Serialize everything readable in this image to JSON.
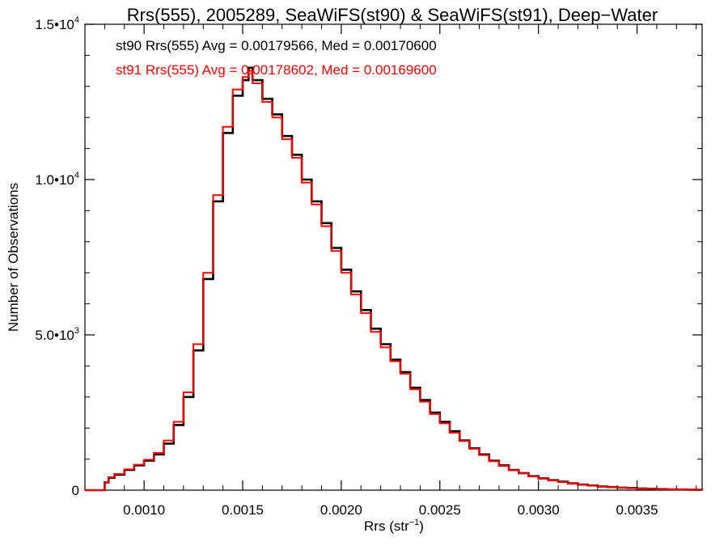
{
  "chart_data": {
    "type": "line",
    "title": "Rrs(555), 2005289, SeaWiFS(st90) & SeaWiFS(st91), Deep−Water",
    "xlabel": "Rrs (str",
    "xlabel_sup": "−1",
    "xlabel_suffix": ")",
    "ylabel": "Number of Observations",
    "xlim": [
      0.0007,
      0.00383
    ],
    "ylim": [
      0,
      15000
    ],
    "step": true,
    "grid": false,
    "x_ticks": [
      {
        "value": 0.001,
        "label": "0.0010"
      },
      {
        "value": 0.0015,
        "label": "0.0015"
      },
      {
        "value": 0.002,
        "label": "0.0020"
      },
      {
        "value": 0.0025,
        "label": "0.0025"
      },
      {
        "value": 0.003,
        "label": "0.0030"
      },
      {
        "value": 0.0035,
        "label": "0.0035"
      }
    ],
    "y_ticks": [
      {
        "value": 0,
        "mant": "0",
        "exp": ""
      },
      {
        "value": 5000,
        "mant": "5.0•10",
        "exp": "3"
      },
      {
        "value": 10000,
        "mant": "1.0•10",
        "exp": "4"
      },
      {
        "value": 15000,
        "mant": "1.5•10",
        "exp": "4"
      }
    ],
    "annotations": [
      {
        "text": "st90 Rrs(555) Avg = 0.00179566, Med = 0.00170600",
        "color": "#000000"
      },
      {
        "text": "st91 Rrs(555) Avg = 0.00178602, Med = 0.00169600",
        "color": "#ff0000"
      }
    ],
    "series": [
      {
        "color": "#000000",
        "x": [
          0.0007,
          0.00078,
          0.0008,
          0.00082,
          0.00085,
          0.0009,
          0.00095,
          0.001,
          0.00105,
          0.0011,
          0.00115,
          0.0012,
          0.00125,
          0.0013,
          0.00135,
          0.0014,
          0.00145,
          0.0015,
          0.00153,
          0.00155,
          0.0016,
          0.00165,
          0.0017,
          0.00175,
          0.0018,
          0.00185,
          0.0019,
          0.00195,
          0.002,
          0.00205,
          0.0021,
          0.00215,
          0.0022,
          0.00225,
          0.0023,
          0.00235,
          0.0024,
          0.00245,
          0.0025,
          0.00255,
          0.0026,
          0.00265,
          0.0027,
          0.00275,
          0.0028,
          0.00285,
          0.0029,
          0.00295,
          0.003,
          0.00305,
          0.0031,
          0.00315,
          0.0032,
          0.00325,
          0.0033,
          0.00335,
          0.0034,
          0.00345,
          0.0035,
          0.00355,
          0.0036,
          0.00365,
          0.0037,
          0.00375,
          0.0038,
          0.00383
        ],
        "y": [
          0,
          0,
          250,
          400,
          500,
          650,
          800,
          950,
          1150,
          1500,
          2100,
          3000,
          4500,
          6800,
          9300,
          11500,
          12700,
          13200,
          13600,
          13200,
          12600,
          12100,
          11400,
          10800,
          10000,
          9300,
          8600,
          7800,
          7100,
          6400,
          5800,
          5200,
          4700,
          4200,
          3800,
          3300,
          2900,
          2500,
          2200,
          1900,
          1600,
          1350,
          1150,
          950,
          800,
          650,
          550,
          450,
          380,
          320,
          270,
          220,
          180,
          150,
          120,
          100,
          80,
          70,
          55,
          45,
          35,
          25,
          20,
          15,
          10,
          5
        ]
      },
      {
        "color": "#ff0000",
        "x": [
          0.0007,
          0.00078,
          0.0008,
          0.00082,
          0.00085,
          0.0009,
          0.00095,
          0.001,
          0.00105,
          0.0011,
          0.00115,
          0.0012,
          0.00125,
          0.0013,
          0.00135,
          0.0014,
          0.00145,
          0.0015,
          0.00153,
          0.00155,
          0.0016,
          0.00165,
          0.0017,
          0.00175,
          0.0018,
          0.00185,
          0.0019,
          0.00195,
          0.002,
          0.00205,
          0.0021,
          0.00215,
          0.0022,
          0.00225,
          0.0023,
          0.00235,
          0.0024,
          0.00245,
          0.0025,
          0.00255,
          0.0026,
          0.00265,
          0.0027,
          0.00275,
          0.0028,
          0.00285,
          0.0029,
          0.00295,
          0.003,
          0.00305,
          0.0031,
          0.00315,
          0.0032,
          0.00325,
          0.0033,
          0.00335,
          0.0034,
          0.00345,
          0.0035,
          0.00355,
          0.0036,
          0.00365,
          0.0037,
          0.00375,
          0.0038,
          0.00383
        ],
        "y": [
          0,
          0,
          250,
          420,
          520,
          670,
          820,
          980,
          1200,
          1600,
          2200,
          3150,
          4700,
          7000,
          9500,
          11700,
          12900,
          13300,
          13500,
          13100,
          12500,
          12000,
          11300,
          10700,
          9900,
          9200,
          8500,
          7700,
          7000,
          6300,
          5700,
          5100,
          4600,
          4150,
          3750,
          3250,
          2850,
          2450,
          2150,
          1850,
          1580,
          1330,
          1130,
          930,
          780,
          640,
          540,
          440,
          370,
          310,
          260,
          215,
          175,
          145,
          115,
          95,
          78,
          65,
          52,
          42,
          33,
          24,
          18,
          13,
          8,
          4
        ]
      }
    ]
  }
}
